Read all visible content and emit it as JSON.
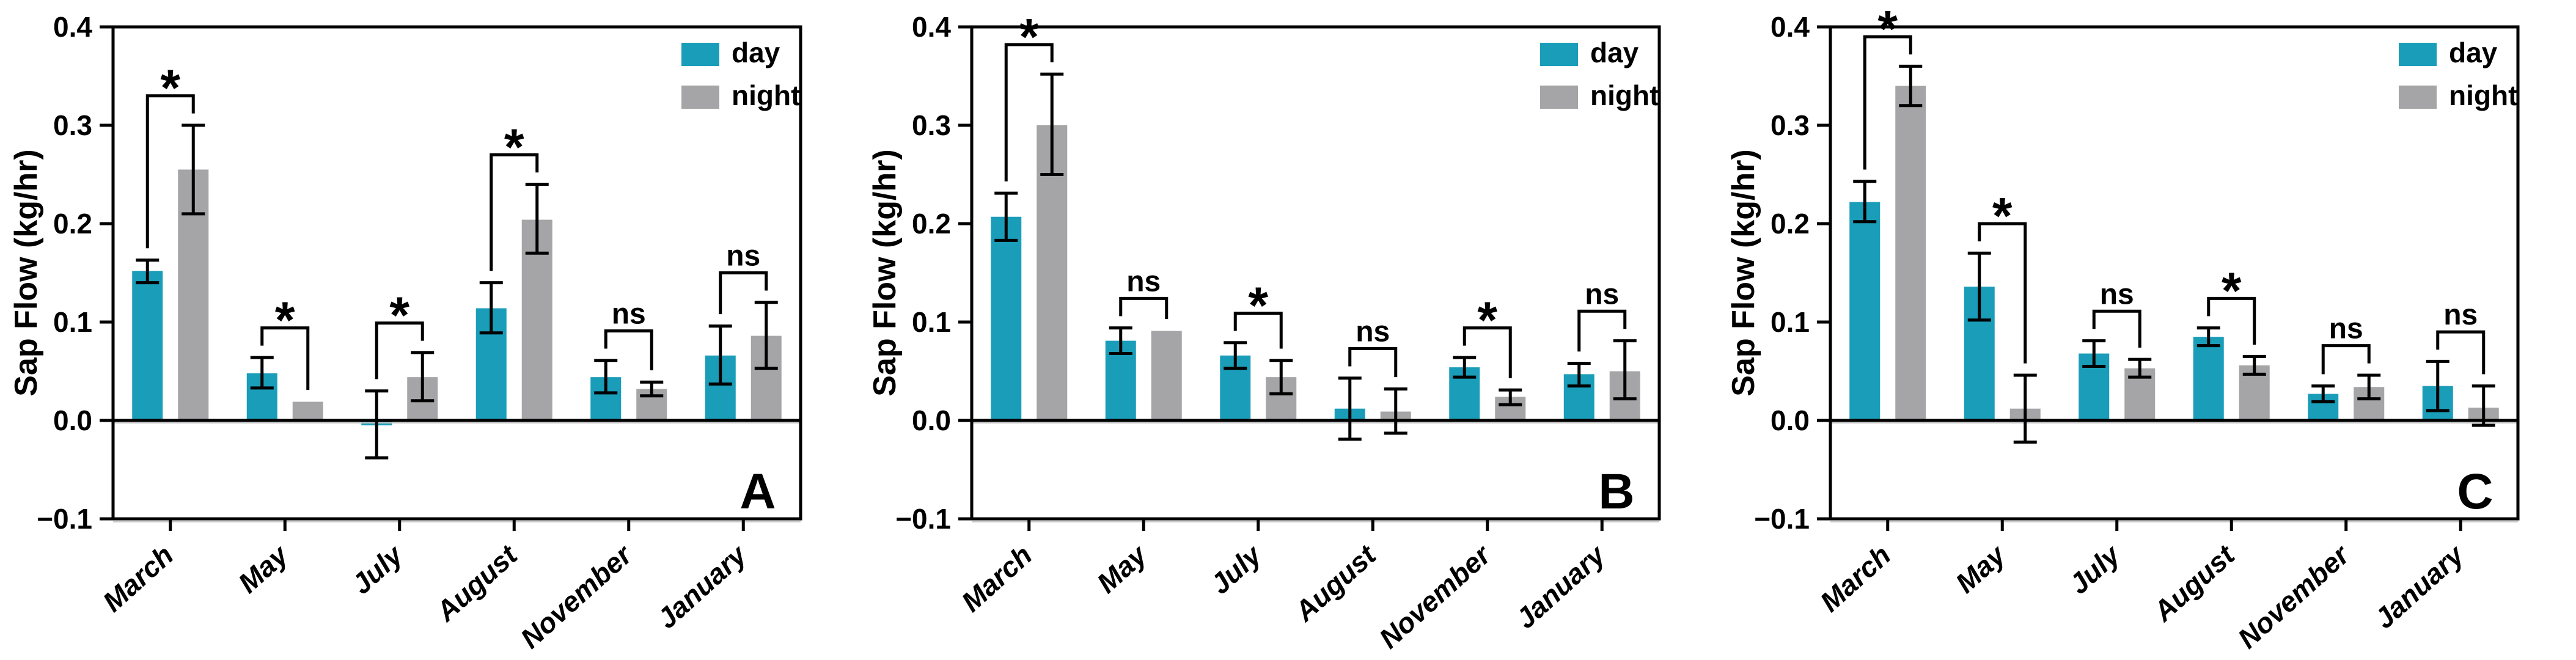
{
  "figure": {
    "ylabel": "Sap Flow (kg/hr)",
    "yticks": [
      0.4,
      0.3,
      0.2,
      0.1,
      0.0,
      -0.1
    ],
    "ytick_labels": [
      "0.4",
      "0.3",
      "0.2",
      "0.1",
      "0.0",
      "−0.1"
    ],
    "ylim": [
      -0.1,
      0.4
    ],
    "colors": {
      "day": "#1A9DB9",
      "night": "#A5A5A7",
      "axis": "#000000",
      "error_bar": "#000000",
      "shadow": "#C9C9C9"
    },
    "legend": {
      "day_label": "day",
      "night_label": "night",
      "position": "top-right"
    },
    "significance_symbols": {
      "significant": "*",
      "not_significant": "ns"
    }
  },
  "chart_data": [
    {
      "type": "bar",
      "panel_label": "A",
      "title": "",
      "xlabel": "",
      "ylabel": "Sap Flow (kg/hr)",
      "ylim": [
        -0.1,
        0.4
      ],
      "grid": false,
      "legend_position": "top-right",
      "categories": [
        "March",
        "May",
        "July",
        "August",
        "November",
        "January"
      ],
      "series": [
        {
          "name": "day",
          "values": [
            0.152,
            0.048,
            -0.005,
            0.114,
            0.044,
            0.066
          ],
          "err_lo": [
            0.14,
            0.033,
            -0.038,
            0.089,
            0.028,
            0.037
          ],
          "err_hi": [
            0.163,
            0.064,
            0.03,
            0.14,
            0.061,
            0.096
          ]
        },
        {
          "name": "night",
          "values": [
            0.255,
            0.019,
            0.044,
            0.204,
            0.032,
            0.086
          ],
          "err_lo": [
            0.21,
            0.019,
            0.02,
            0.17,
            0.025,
            0.053
          ],
          "err_hi": [
            0.3,
            0.019,
            0.069,
            0.24,
            0.039,
            0.12
          ]
        }
      ],
      "significance": [
        "*",
        "*",
        "*",
        "*",
        "ns",
        "ns"
      ]
    },
    {
      "type": "bar",
      "panel_label": "B",
      "title": "",
      "xlabel": "",
      "ylabel": "Sap Flow (kg/hr)",
      "ylim": [
        -0.1,
        0.4
      ],
      "grid": false,
      "legend_position": "top-right",
      "categories": [
        "March",
        "May",
        "July",
        "August",
        "November",
        "January"
      ],
      "series": [
        {
          "name": "day",
          "values": [
            0.207,
            0.081,
            0.066,
            0.012,
            0.054,
            0.047
          ],
          "err_lo": [
            0.183,
            0.068,
            0.053,
            -0.019,
            0.044,
            0.035
          ],
          "err_hi": [
            0.231,
            0.094,
            0.079,
            0.043,
            0.064,
            0.058
          ]
        },
        {
          "name": "night",
          "values": [
            0.3,
            0.091,
            0.044,
            0.009,
            0.024,
            0.05
          ],
          "err_lo": [
            0.25,
            0.091,
            0.027,
            -0.013,
            0.016,
            0.022
          ],
          "err_hi": [
            0.352,
            0.091,
            0.061,
            0.032,
            0.031,
            0.081
          ]
        }
      ],
      "significance": [
        "*",
        "ns",
        "*",
        "ns",
        "*",
        "ns"
      ]
    },
    {
      "type": "bar",
      "panel_label": "C",
      "title": "",
      "xlabel": "",
      "ylabel": "Sap Flow (kg/hr)",
      "ylim": [
        -0.1,
        0.4
      ],
      "grid": false,
      "legend_position": "top-right",
      "categories": [
        "March",
        "May",
        "July",
        "August",
        "November",
        "January"
      ],
      "series": [
        {
          "name": "day",
          "values": [
            0.222,
            0.136,
            0.068,
            0.085,
            0.027,
            0.035
          ],
          "err_lo": [
            0.202,
            0.102,
            0.055,
            0.076,
            0.019,
            0.01
          ],
          "err_hi": [
            0.243,
            0.17,
            0.081,
            0.094,
            0.035,
            0.06
          ]
        },
        {
          "name": "night",
          "values": [
            0.34,
            0.012,
            0.053,
            0.056,
            0.034,
            0.013
          ],
          "err_lo": [
            0.32,
            -0.022,
            0.044,
            0.047,
            0.022,
            -0.005
          ],
          "err_hi": [
            0.36,
            0.046,
            0.062,
            0.065,
            0.046,
            0.035
          ]
        }
      ],
      "significance": [
        "*",
        "*",
        "ns",
        "*",
        "ns",
        "ns"
      ]
    }
  ]
}
